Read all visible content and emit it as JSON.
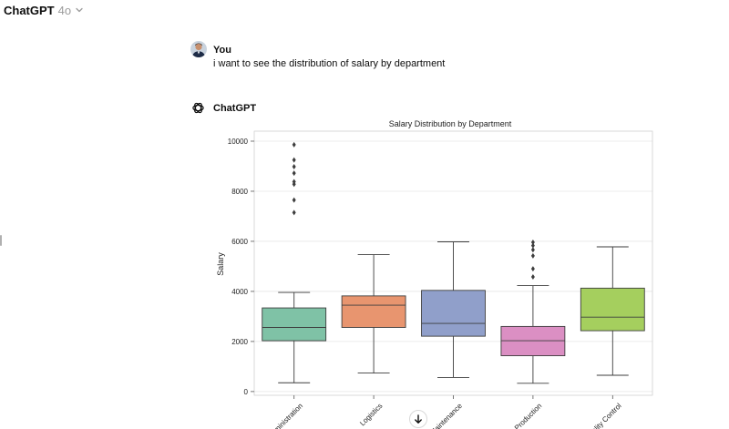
{
  "header": {
    "app_title": "ChatGPT",
    "model": "4o"
  },
  "conversation": {
    "user": {
      "name": "You",
      "message": "i want to see the distribution of salary by department"
    },
    "assistant": {
      "name": "ChatGPT"
    }
  },
  "chart_data": {
    "type": "box",
    "title": "Salary Distribution by Department",
    "xlabel": "",
    "ylabel": "Salary",
    "ylim": [
      -150,
      10400
    ],
    "yticks": [
      0,
      2000,
      4000,
      6000,
      8000,
      10000
    ],
    "grid": true,
    "categories": [
      "Administration",
      "Logistics",
      "Maintenance",
      "Production",
      "Quality Control"
    ],
    "tick_labels": [
      "ministration",
      "Logistics",
      "laintenance",
      "Production",
      "ality Control"
    ],
    "boxes": [
      {
        "name": "Administration",
        "whisker_low": 350,
        "q1": 2030,
        "median": 2560,
        "q3": 3340,
        "whisker_high": 3960,
        "outliers": [
          7150,
          7650,
          8280,
          8380,
          8720,
          8980,
          9250,
          9860
        ],
        "color": "#7fc2a6"
      },
      {
        "name": "Logistics",
        "whisker_low": 740,
        "q1": 2560,
        "median": 3450,
        "q3": 3820,
        "whisker_high": 5470,
        "outliers": [],
        "color": "#e8956f"
      },
      {
        "name": "Maintenance",
        "whisker_low": 560,
        "q1": 2210,
        "median": 2720,
        "q3": 4040,
        "whisker_high": 5980,
        "outliers": [],
        "color": "#909fca"
      },
      {
        "name": "Production",
        "whisker_low": 330,
        "q1": 1430,
        "median": 2030,
        "q3": 2600,
        "whisker_high": 4230,
        "outliers": [
          4580,
          4900,
          5420,
          5660,
          5830,
          5960
        ],
        "color": "#db8fc3"
      },
      {
        "name": "Quality Control",
        "whisker_low": 650,
        "q1": 2430,
        "median": 2970,
        "q3": 4130,
        "whisker_high": 5780,
        "outliers": [],
        "color": "#a5cf5e"
      }
    ]
  },
  "icons": {
    "chevron": "chevron-down-icon",
    "scroll": "arrow-down-icon",
    "logo": "openai-logo-icon"
  },
  "colors": {
    "text": "#0d0d0d",
    "muted": "#9b9b9b",
    "grid": "#e6e6e6"
  }
}
